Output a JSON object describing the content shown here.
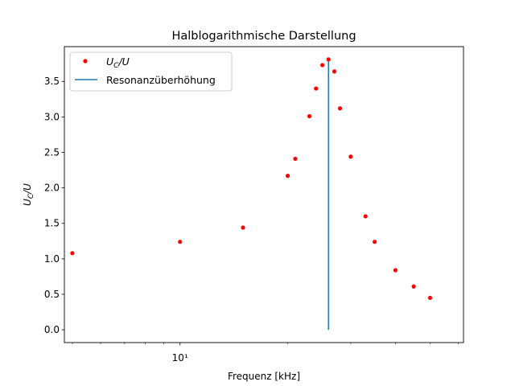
{
  "chart_data": {
    "type": "scatter",
    "title": "Halblogarithmische Darstellung",
    "xlabel": "Frequenz [kHz]",
    "ylabel": "U_C/U",
    "xscale": "log",
    "xlim": [
      4.75,
      62
    ],
    "ylim": [
      -0.18,
      3.99
    ],
    "yticks": [
      0.0,
      0.5,
      1.0,
      1.5,
      2.0,
      2.5,
      3.0,
      3.5
    ],
    "ytick_labels": [
      "0.0",
      "0.5",
      "1.0",
      "1.5",
      "2.0",
      "2.5",
      "3.0",
      "3.5"
    ],
    "xticks_major": [
      10
    ],
    "xtick_labels": [
      "10¹"
    ],
    "xticks_minor": [
      5,
      6,
      7,
      8,
      9,
      20,
      30,
      40,
      50,
      60
    ],
    "grid": false,
    "legend_position": "upper-left",
    "series": [
      {
        "name": "U_C/U",
        "style": "points",
        "color": "#ff0000",
        "x": [
          5,
          10,
          15,
          20,
          21,
          23,
          24,
          25,
          26,
          27,
          28,
          30,
          33,
          35,
          40,
          45,
          50
        ],
        "y": [
          1.08,
          1.24,
          1.44,
          2.17,
          2.41,
          3.01,
          3.4,
          3.73,
          3.81,
          3.64,
          3.12,
          2.44,
          1.6,
          1.24,
          0.84,
          0.61,
          0.45
        ]
      },
      {
        "name": "Resonanzüberhöhung",
        "style": "vline",
        "color": "#1f77b4",
        "x": 26,
        "ymin": 0,
        "ymax": 3.78
      }
    ]
  }
}
